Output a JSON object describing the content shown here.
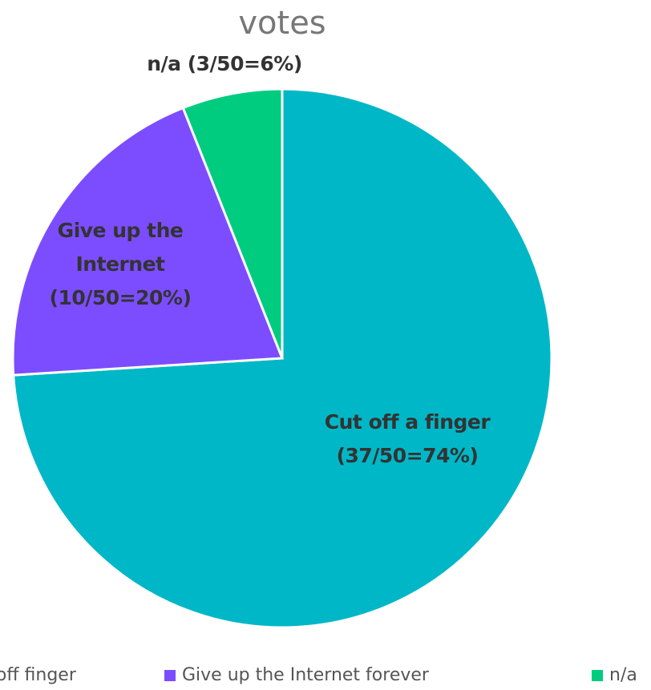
{
  "chart_data": {
    "type": "pie",
    "title": "votes",
    "categories": [
      "Cut off finger",
      "Give up the Internet forever",
      "n/a"
    ],
    "values": [
      74,
      20,
      6
    ],
    "value_labels": [
      "Cut off a finger (37/50=74%)",
      "Give up the Internet (10/50=20%)",
      "n/a (3/50=6%)"
    ],
    "colors": [
      "#00b7c7",
      "#7c4dff",
      "#00cc7f"
    ],
    "legend": "bottom"
  }
}
